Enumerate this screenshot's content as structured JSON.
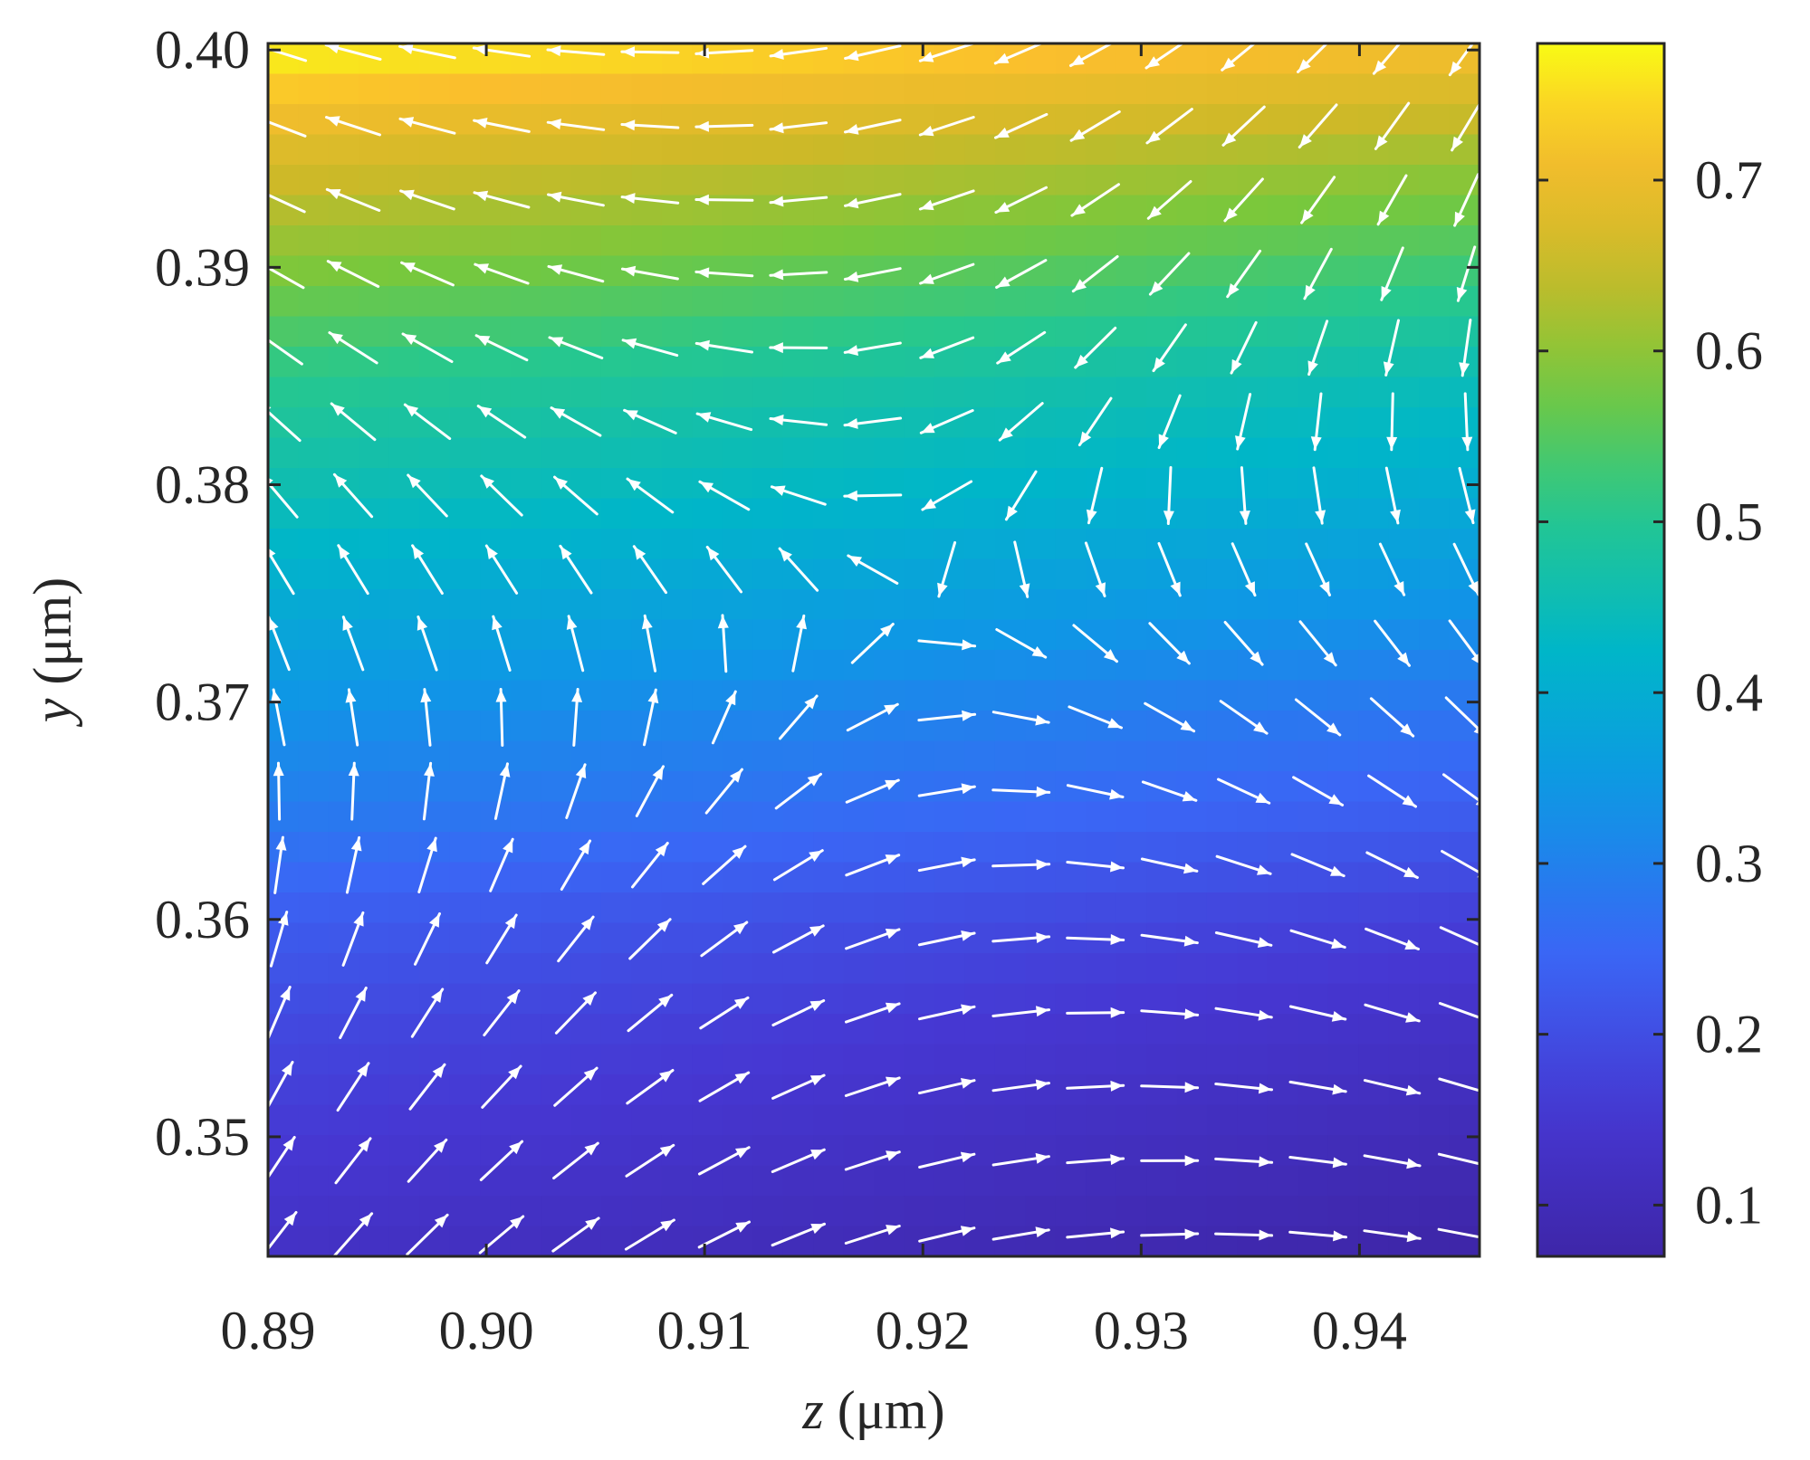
{
  "chart_data": {
    "type": "heatmap",
    "subtype": "vector-field-over-colormap",
    "title": "",
    "xlabel": "z (μm)",
    "ylabel": "y (μm)",
    "xlabel_var": "z",
    "xlabel_unit": " (μm)",
    "ylabel_var": "y",
    "ylabel_unit": " (μm)",
    "xlim": [
      0.89,
      0.9455
    ],
    "ylim": [
      0.3445,
      0.4003
    ],
    "x_ticks": [
      0.89,
      0.9,
      0.91,
      0.92,
      0.93,
      0.94
    ],
    "x_tick_labels": [
      "0.89",
      "0.90",
      "0.91",
      "0.92",
      "0.93",
      "0.94"
    ],
    "y_ticks": [
      0.35,
      0.36,
      0.37,
      0.38,
      0.39,
      0.4
    ],
    "y_tick_labels": [
      "0.35",
      "0.36",
      "0.37",
      "0.38",
      "0.39",
      "0.40"
    ],
    "colorbar": {
      "colormap": "parula",
      "range": [
        0.07,
        0.78
      ],
      "ticks": [
        0.1,
        0.2,
        0.3,
        0.4,
        0.5,
        0.6,
        0.7
      ],
      "tick_labels": [
        "0.1",
        "0.2",
        "0.3",
        "0.4",
        "0.5",
        "0.6",
        "0.7"
      ]
    },
    "field_profile": [
      {
        "y": 0.345,
        "value": 0.1
      },
      {
        "y": 0.35,
        "value": 0.13
      },
      {
        "y": 0.355,
        "value": 0.16
      },
      {
        "y": 0.36,
        "value": 0.2
      },
      {
        "y": 0.365,
        "value": 0.26
      },
      {
        "y": 0.37,
        "value": 0.31
      },
      {
        "y": 0.375,
        "value": 0.37
      },
      {
        "y": 0.38,
        "value": 0.43
      },
      {
        "y": 0.385,
        "value": 0.48
      },
      {
        "y": 0.39,
        "value": 0.56
      },
      {
        "y": 0.395,
        "value": 0.64
      },
      {
        "y": 0.4,
        "value": 0.74
      }
    ],
    "vector_field": {
      "pattern": "saddle",
      "center": {
        "z": 0.9195,
        "y": 0.3752
      },
      "grid_z": {
        "start": 0.8905,
        "step": 0.0034,
        "count": 17
      },
      "grid_y": {
        "start": 0.3455,
        "step": 0.0034,
        "count": 17
      },
      "arrow_color": "#ffffff"
    },
    "frame_color": "#262626",
    "grid": false
  }
}
